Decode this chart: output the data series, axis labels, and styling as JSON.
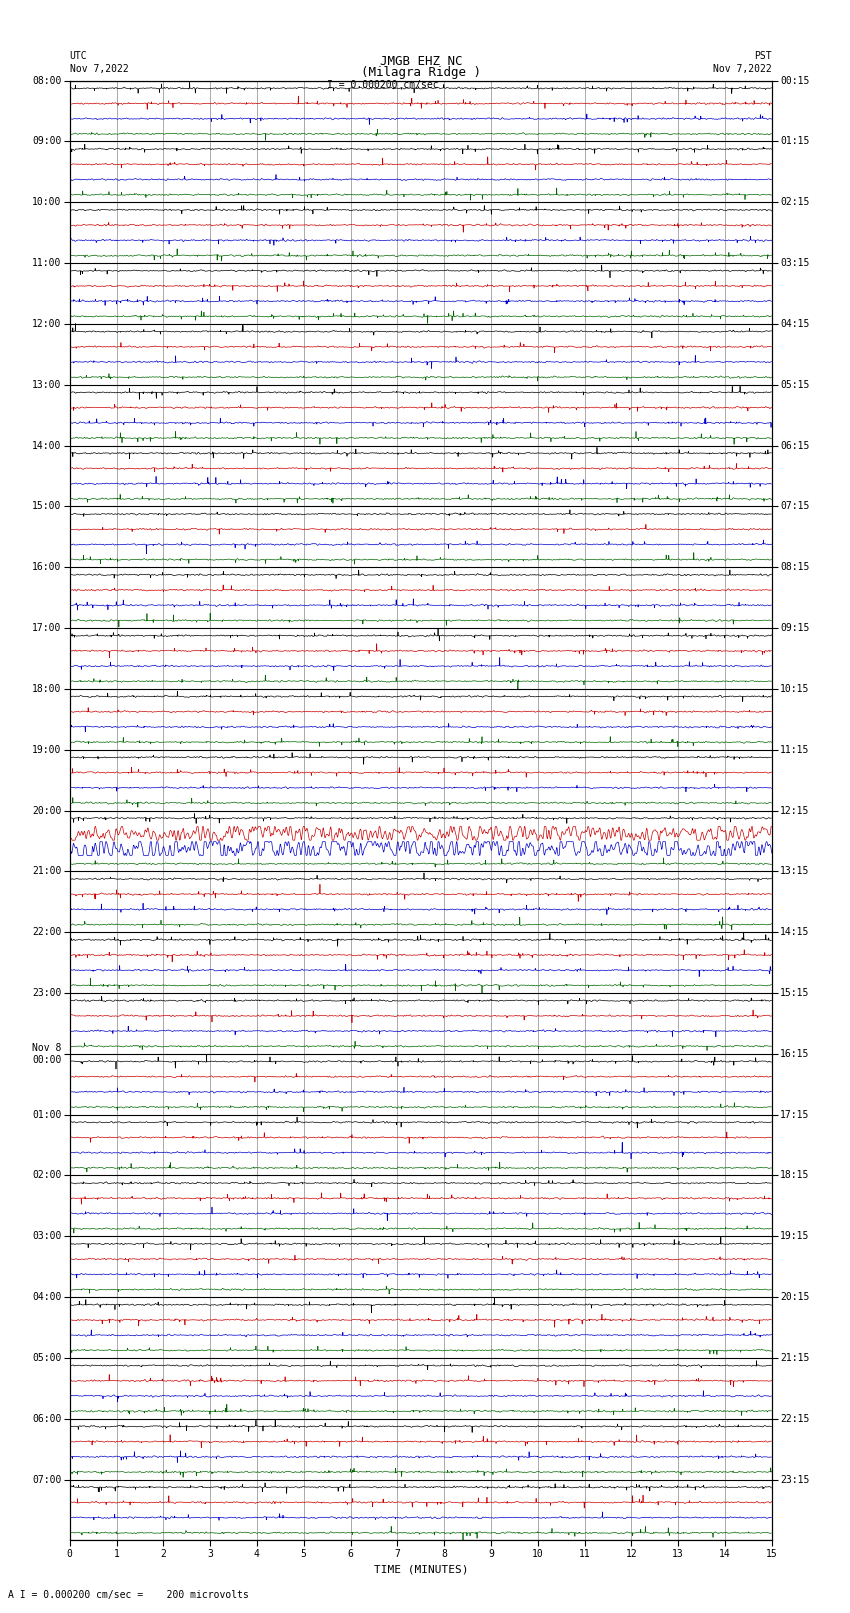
{
  "title_line1": "JMGB EHZ NC",
  "title_line2": "(Milagra Ridge )",
  "scale_text": "I = 0.000200 cm/sec",
  "left_label_line1": "UTC",
  "left_label_line2": "Nov 7,2022",
  "right_label_line1": "PST",
  "right_label_line2": "Nov 7,2022",
  "bottom_label": "TIME (MINUTES)",
  "footnote": "A I = 0.000200 cm/sec =    200 microvolts",
  "utc_times": [
    "08:00",
    "09:00",
    "10:00",
    "11:00",
    "12:00",
    "13:00",
    "14:00",
    "15:00",
    "16:00",
    "17:00",
    "18:00",
    "19:00",
    "20:00",
    "21:00",
    "22:00",
    "23:00",
    "Nov 8\n00:00",
    "01:00",
    "02:00",
    "03:00",
    "04:00",
    "05:00",
    "06:00",
    "07:00"
  ],
  "pst_times": [
    "00:15",
    "01:15",
    "02:15",
    "03:15",
    "04:15",
    "05:15",
    "06:15",
    "07:15",
    "08:15",
    "09:15",
    "10:15",
    "11:15",
    "12:15",
    "13:15",
    "14:15",
    "15:15",
    "16:15",
    "17:15",
    "18:15",
    "19:15",
    "20:15",
    "21:15",
    "22:15",
    "23:15"
  ],
  "num_rows": 24,
  "traces_per_row": 4,
  "trace_colors": [
    "#000000",
    "#cc0000",
    "#0000cc",
    "#006600"
  ],
  "x_ticks": [
    0,
    1,
    2,
    3,
    4,
    5,
    6,
    7,
    8,
    9,
    10,
    11,
    12,
    13,
    14,
    15
  ],
  "noise_amplitude": 0.12,
  "fig_bg": "#ffffff",
  "plot_bg": "#ffffff",
  "grid_color": "#888888",
  "grid_linewidth": 0.5,
  "trace_linewidth": 0.5,
  "font_size_title": 9,
  "font_size_axis": 8,
  "font_size_tick": 7,
  "font_size_footnote": 7,
  "font_family": "monospace"
}
